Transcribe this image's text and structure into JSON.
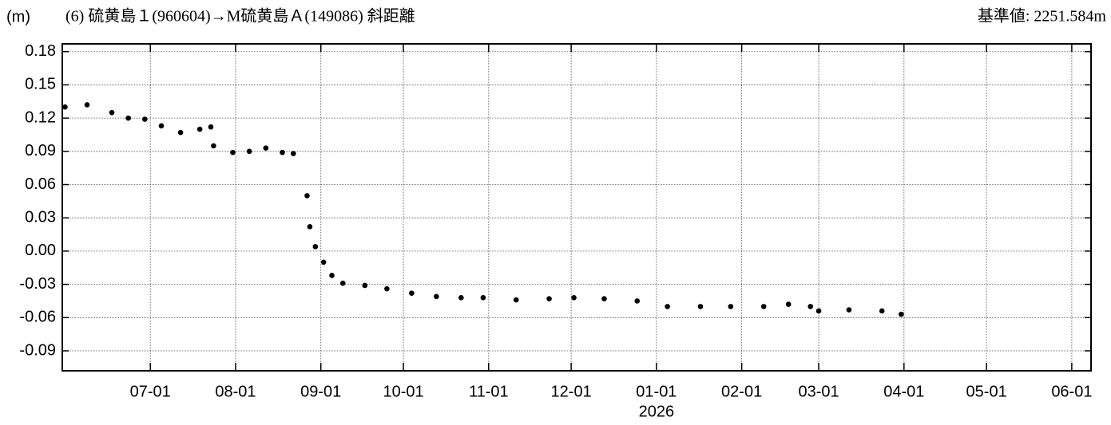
{
  "chart_data": {
    "type": "scatter",
    "y_unit": "(m)",
    "title": "(6) 硫黄島１(960604)→M硫黄島Ａ(149086) 斜距離",
    "reference": "基準値: 2251.584m",
    "x": [
      "05-31",
      "06-08",
      "06-17",
      "06-23",
      "06-29",
      "07-05",
      "07-12",
      "07-19",
      "07-23",
      "07-24",
      "07-31",
      "08-06",
      "08-12",
      "08-18",
      "08-22",
      "08-27",
      "08-28",
      "08-30",
      "09-02",
      "09-05",
      "09-09",
      "09-17",
      "09-25",
      "10-04",
      "10-13",
      "10-22",
      "10-30",
      "11-11",
      "11-23",
      "12-02",
      "12-13",
      "12-25",
      "01-05",
      "01-17",
      "01-28",
      "02-09",
      "02-18",
      "02-26",
      "03-01",
      "03-12",
      "03-24",
      "03-31"
    ],
    "series": [
      {
        "color": "#000000",
        "values": [
          0.13,
          0.132,
          0.125,
          0.12,
          0.119,
          0.113,
          0.107,
          0.11,
          0.112,
          0.095,
          0.089,
          0.09,
          0.093,
          0.089,
          0.088,
          0.05,
          0.022,
          0.004,
          -0.01,
          -0.022,
          -0.029,
          -0.031,
          -0.034,
          -0.038,
          -0.041,
          -0.042,
          -0.042,
          -0.044,
          -0.043,
          -0.042,
          -0.043,
          -0.045,
          -0.05,
          -0.05,
          -0.05,
          -0.05,
          -0.048,
          -0.05,
          -0.054,
          -0.053,
          -0.054,
          -0.057
        ]
      }
    ],
    "xlim": [
      "05-30",
      "06-08"
    ],
    "xticks": [
      "07-01",
      "08-01",
      "09-01",
      "10-01",
      "11-01",
      "12-01",
      "01-01",
      "02-01",
      "03-01",
      "04-01",
      "05-01",
      "06-01"
    ],
    "year_label": "2026",
    "year_label_at": 6,
    "ylim": [
      -0.108,
      0.187
    ],
    "yticks": [
      0.18,
      0.15,
      0.12,
      0.09,
      0.06,
      0.03,
      {
        "value": 0,
        "label": "0.00"
      },
      -0.03,
      -0.06,
      -0.09
    ],
    "grid": true
  }
}
